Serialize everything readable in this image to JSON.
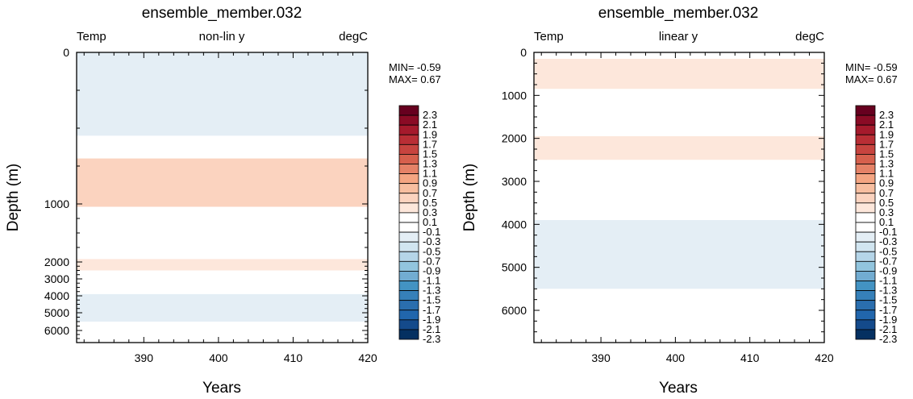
{
  "colorbar": {
    "levels": [
      "2.3",
      "2.1",
      "1.9",
      "1.7",
      "1.5",
      "1.3",
      "1.1",
      "0.9",
      "0.7",
      "0.5",
      "0.3",
      "0.1",
      "-0.1",
      "-0.3",
      "-0.5",
      "-0.7",
      "-0.9",
      "-1.1",
      "-1.3",
      "-1.5",
      "-1.7",
      "-1.9",
      "-2.1",
      "-2.3"
    ],
    "colors": [
      "#67001f",
      "#8a0b25",
      "#a51a2c",
      "#b92e35",
      "#c7443f",
      "#d6604d",
      "#e58267",
      "#f4a582",
      "#f7bea0",
      "#fbd3bf",
      "#fde7db",
      "#ffffff",
      "#ffffff",
      "#e4eef5",
      "#d1e5f0",
      "#b5d5e8",
      "#92c5de",
      "#72acd1",
      "#4393c3",
      "#3680b9",
      "#2a6eae",
      "#2166ac",
      "#144a8b",
      "#053061"
    ]
  },
  "chart_data": [
    {
      "type": "heatmap",
      "title": "ensemble_member.032",
      "left_label": "Temp",
      "center_label": "non-lin y",
      "right_label": "degC",
      "xlabel": "Years",
      "ylabel": "Depth (m)",
      "xlim": [
        381,
        420
      ],
      "x_ticks": [
        "390",
        "400",
        "410",
        "420"
      ],
      "y_scale": "non-linear (depth-stretched)",
      "y_ticks": [
        "0",
        "1000",
        "2000",
        "3000",
        "4000",
        "5000",
        "6000"
      ],
      "min_text": "MIN= -0.59",
      "max_text": "MAX=  0.67",
      "bands": [
        {
          "from": 0,
          "to": 550,
          "value": -0.2
        },
        {
          "from": 550,
          "to": 700,
          "value": 0.0
        },
        {
          "from": 700,
          "to": 1050,
          "value": 0.5
        },
        {
          "from": 1050,
          "to": 1950,
          "value": 0.2
        },
        {
          "from": 1950,
          "to": 2500,
          "value": 0.4
        },
        {
          "from": 2500,
          "to": 3150,
          "value": 0.2
        },
        {
          "from": 3150,
          "to": 3900,
          "value": 0.0
        },
        {
          "from": 3900,
          "to": 5500,
          "value": -0.2
        },
        {
          "from": 5500,
          "to": 6750,
          "value": 0.0
        }
      ]
    },
    {
      "type": "heatmap",
      "title": "ensemble_member.032",
      "left_label": "Temp",
      "center_label": "linear y",
      "right_label": "degC",
      "xlabel": "Years",
      "ylabel": "Depth (m)",
      "xlim": [
        381,
        420
      ],
      "ylim": [
        0,
        6750
      ],
      "x_ticks": [
        "390",
        "400",
        "410",
        "420"
      ],
      "y_scale": "linear",
      "y_ticks": [
        "0",
        "1000",
        "2000",
        "3000",
        "4000",
        "5000",
        "6000"
      ],
      "min_text": "MIN= -0.59",
      "max_text": "MAX=  0.67",
      "bands": [
        {
          "from": 0,
          "to": 150,
          "value": 0.2
        },
        {
          "from": 150,
          "to": 850,
          "value": 0.4
        },
        {
          "from": 850,
          "to": 1950,
          "value": 0.2
        },
        {
          "from": 1950,
          "to": 2500,
          "value": 0.4
        },
        {
          "from": 2500,
          "to": 3150,
          "value": 0.2
        },
        {
          "from": 3150,
          "to": 3900,
          "value": 0.0
        },
        {
          "from": 3900,
          "to": 5500,
          "value": -0.2
        },
        {
          "from": 5500,
          "to": 6750,
          "value": 0.0
        }
      ]
    }
  ]
}
